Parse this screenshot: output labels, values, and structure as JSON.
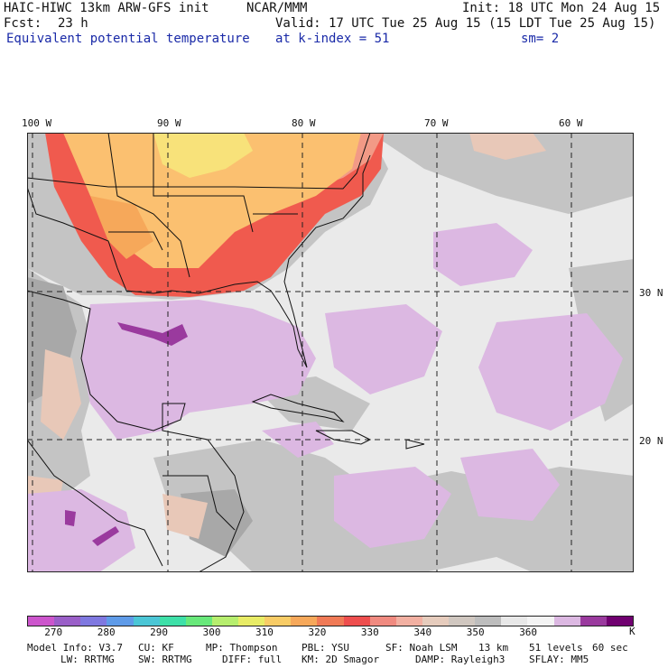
{
  "header": {
    "model": "HAIC-HIWC 13km ARW-GFS init",
    "org": "NCAR/MMM",
    "init": "Init: 18 UTC Mon 24 Aug 15",
    "fcst_label": "Fcst:",
    "fcst_value": "23 h",
    "valid": "Valid: 17 UTC Tue 25 Aug 15 (15 LDT Tue 25 Aug 15)",
    "field": "Equivalent potential temperature",
    "level": "at k-index =  51",
    "smooth": "sm= 2"
  },
  "map": {
    "lon_labels": [
      "100 W",
      "90 W",
      "80 W",
      "70 W",
      "60 W"
    ],
    "lat_labels": [
      "30 N",
      "20 N"
    ],
    "colors": {
      "ocean_base": "#eaeaea",
      "gray": "#c4c4c4",
      "dark_gray": "#a8a8a8",
      "lilac": "#dcb8e2",
      "purple": "#9a3a9e",
      "red": "#f05a4e",
      "salmon": "#f29a86",
      "orange": "#fbc070",
      "yellow": "#f8e27a",
      "pink_tan": "#e8c8b8",
      "coast": "#111111"
    }
  },
  "colorbar": {
    "colors": [
      "#cc55cc",
      "#9a5fc8",
      "#7f78e0",
      "#5f9be8",
      "#4bc6d6",
      "#3ee0a8",
      "#68e87a",
      "#b6ee6e",
      "#e8ec66",
      "#f8cc66",
      "#f6a85a",
      "#f07a56",
      "#ee4e4e",
      "#f08a80",
      "#f2b0a2",
      "#e6ccbd",
      "#d0c7c0",
      "#bdbdbd",
      "#e8e8e8",
      "#f4f4f4",
      "#dcb8e2",
      "#9a3a9e",
      "#700070"
    ],
    "ticks": [
      "270",
      "280",
      "290",
      "300",
      "310",
      "320",
      "330",
      "340",
      "350",
      "360"
    ],
    "unit": "K"
  },
  "footer": {
    "line1": [
      "Model Info: V3.7",
      "CU: KF",
      "MP: Thompson",
      "PBL: YSU",
      "SF: Noah LSM",
      "13 km",
      "51 levels",
      "60 sec"
    ],
    "line2": [
      "LW: RRTMG",
      "SW: RRTMG",
      "DIFF: full",
      "KM: 2D Smagor",
      "DAMP: Rayleigh3",
      "SFLAY: MM5"
    ]
  }
}
